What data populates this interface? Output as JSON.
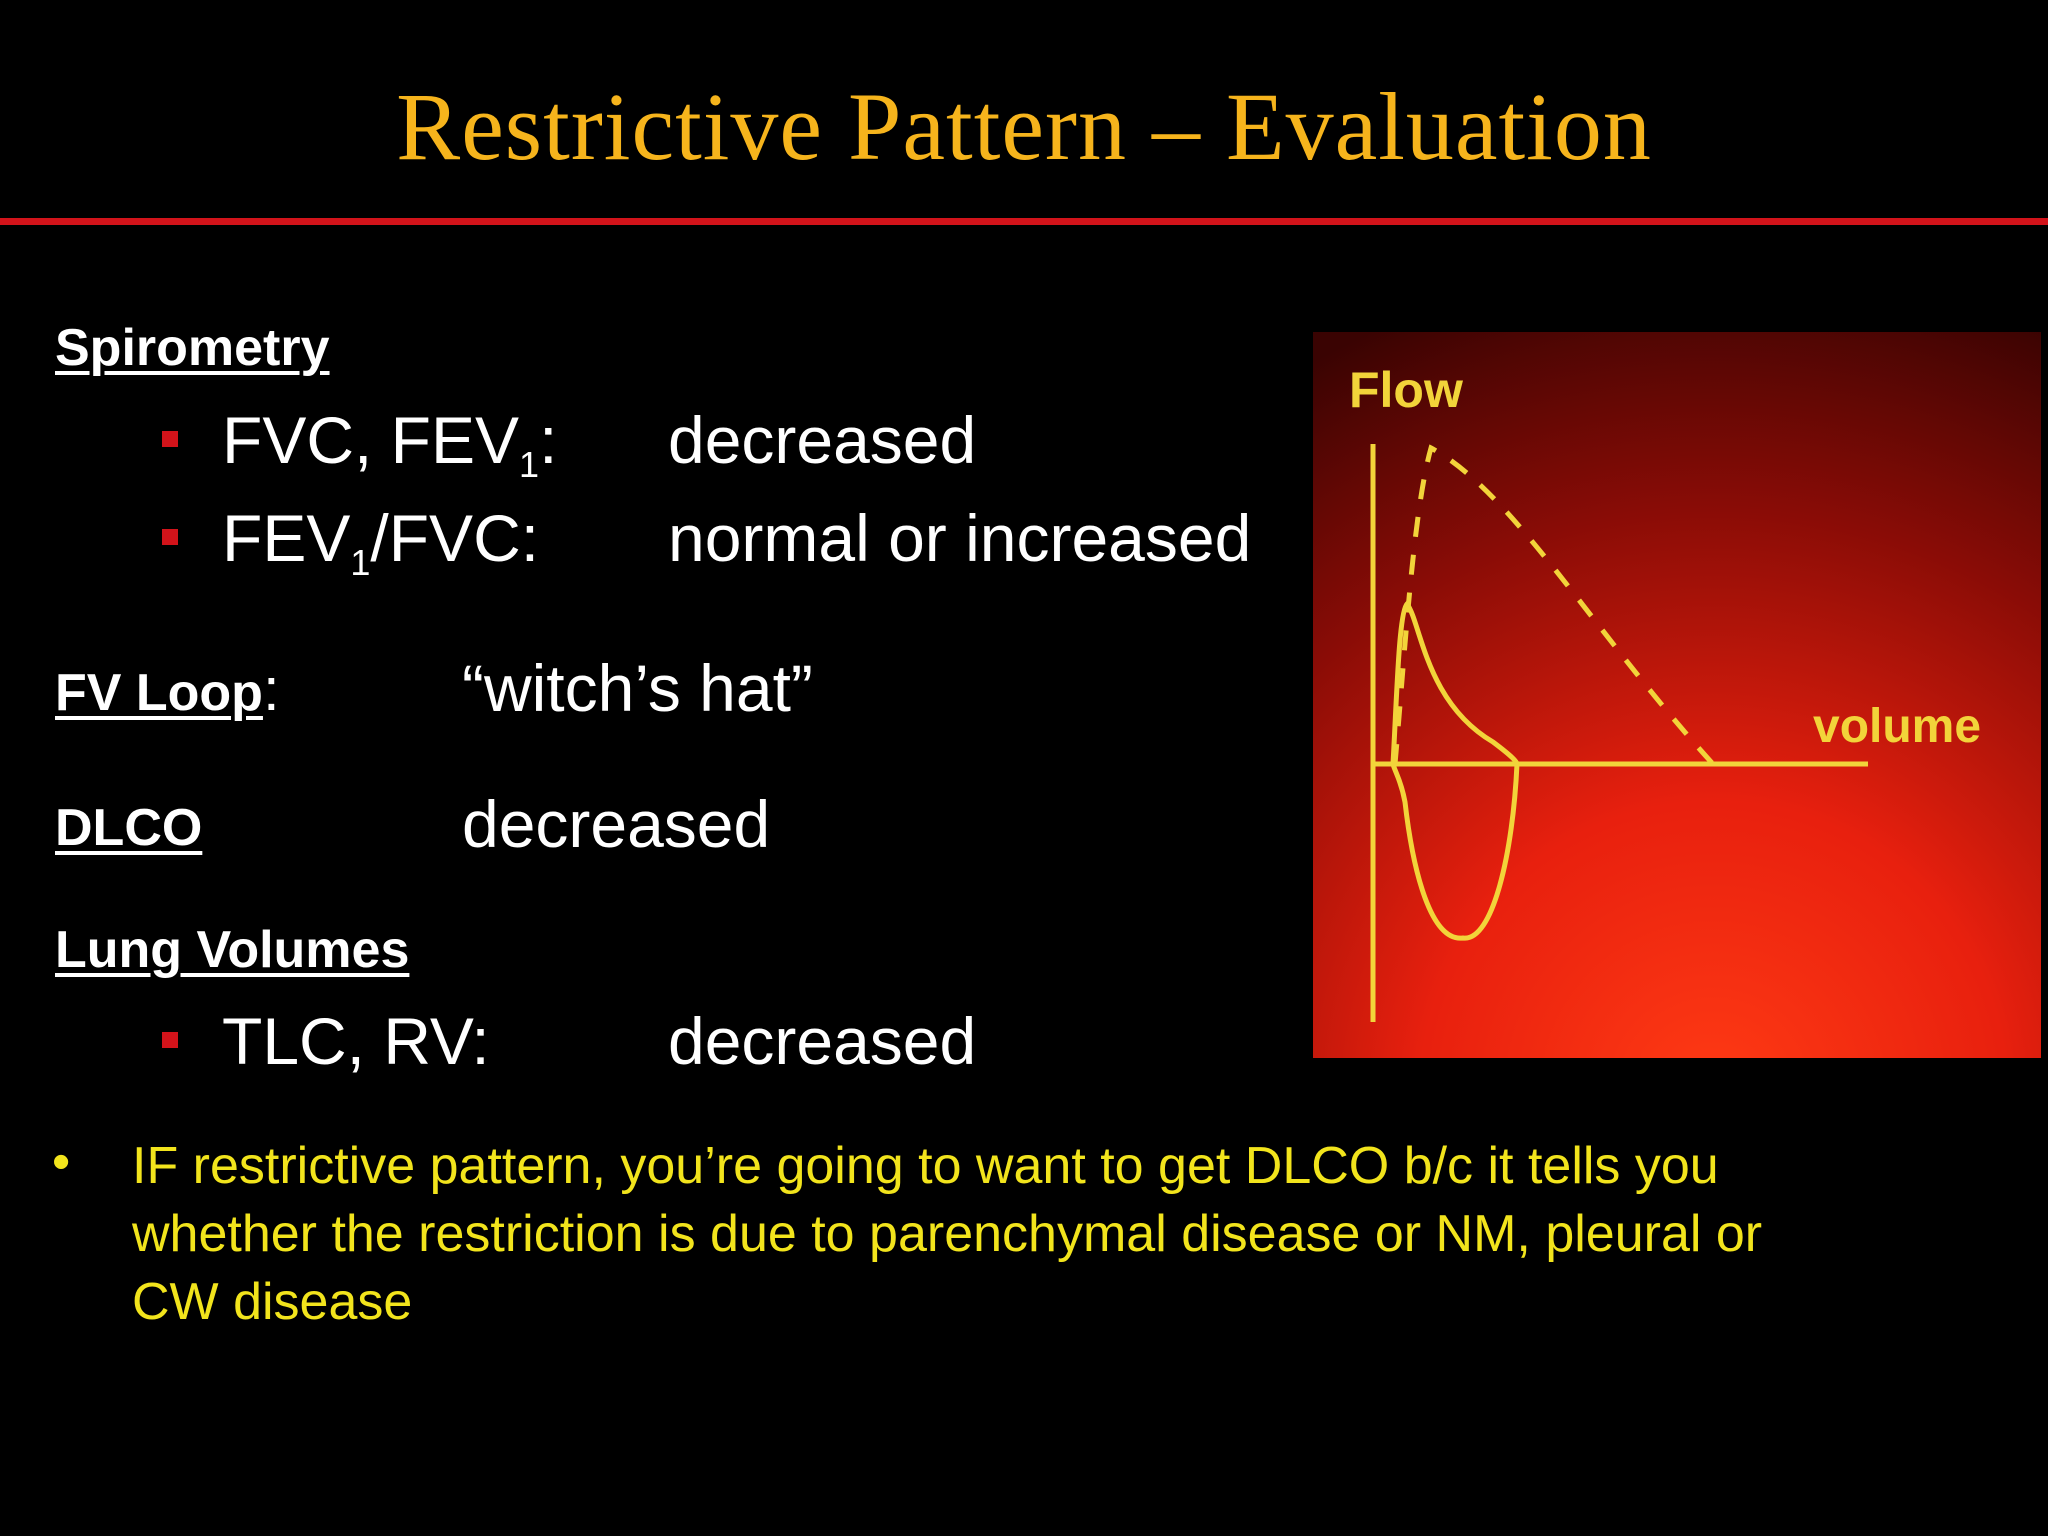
{
  "slide": {
    "title": "Restrictive Pattern – Evaluation"
  },
  "spirometry": {
    "heading": "Spirometry",
    "items": [
      {
        "label_pre": "FVC, FEV",
        "label_sub": "1",
        "label_post": ":",
        "value": "decreased"
      },
      {
        "label_pre": "FEV",
        "label_sub": "1",
        "label_post": "/FVC:",
        "value": "normal or increased"
      }
    ]
  },
  "fv_loop": {
    "heading": "FV Loop",
    "colon": ":",
    "value": "“witch’s hat”"
  },
  "dlco": {
    "heading": "DLCO",
    "value": "decreased"
  },
  "lung_volumes": {
    "heading": "Lung Volumes",
    "items": [
      {
        "label": "TLC, RV:",
        "value": "decreased"
      }
    ]
  },
  "note": {
    "bullet": "•",
    "text": "IF restrictive pattern, you’re going to want to get DLCO b/c it tells you whether the restriction is due to parenchymal disease or NM, pleural or CW disease"
  },
  "figure": {
    "y_label": "Flow",
    "x_label": "volume"
  },
  "colors": {
    "title": "#f6b41c",
    "rule": "#d2131a",
    "note": "#f2e41c",
    "curve": "#f2d43a"
  }
}
